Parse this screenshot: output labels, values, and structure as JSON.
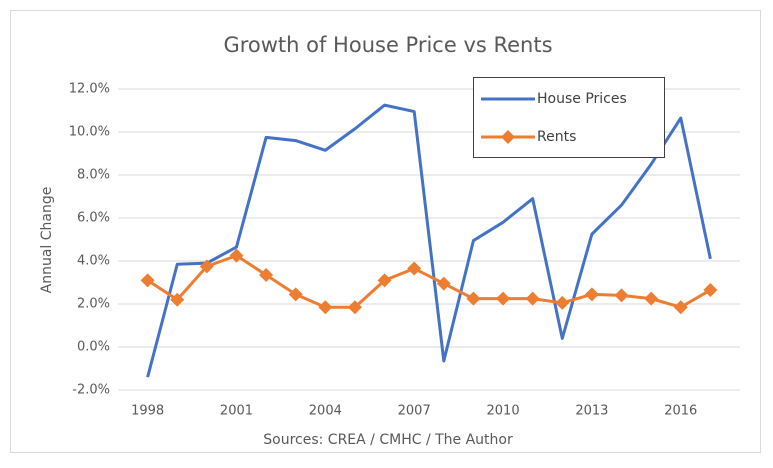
{
  "chart_data": {
    "type": "line",
    "title": "Growth of House Price vs Rents",
    "y_label": "Annual Change",
    "x_label": "Sources: CREA / CMHC / The Author",
    "x": [
      1998,
      1999,
      2000,
      2001,
      2002,
      2003,
      2004,
      2005,
      2006,
      2007,
      2008,
      2009,
      2010,
      2011,
      2012,
      2013,
      2014,
      2015,
      2016,
      2017
    ],
    "xlim": [
      1997,
      2018
    ],
    "xticks": [
      1998,
      2001,
      2004,
      2007,
      2010,
      2013,
      2016
    ],
    "ylim": [
      -2,
      12
    ],
    "yticks": [
      {
        "value": -2,
        "label": "-2.0%"
      },
      {
        "value": 0,
        "label": "0.0%"
      },
      {
        "value": 2,
        "label": "2.0%"
      },
      {
        "value": 4,
        "label": "4.0%"
      },
      {
        "value": 6,
        "label": "6.0%"
      },
      {
        "value": 8,
        "label": "8.0%"
      },
      {
        "value": 10,
        "label": "10.0%"
      },
      {
        "value": 12,
        "label": "12.0%"
      }
    ],
    "grid": true,
    "legend": "top-right",
    "series": [
      {
        "name": "House Prices",
        "color": "#4472c4",
        "marker": "none",
        "values": [
          -1.4,
          3.85,
          3.9,
          4.65,
          9.75,
          9.6,
          9.15,
          10.15,
          11.25,
          10.95,
          -0.65,
          4.95,
          5.8,
          6.9,
          0.4,
          5.25,
          6.6,
          8.5,
          10.65,
          4.1
        ]
      },
      {
        "name": "Rents",
        "color": "#ed7d31",
        "marker": "diamond",
        "values": [
          3.1,
          2.2,
          3.75,
          4.25,
          3.35,
          2.45,
          1.85,
          1.85,
          3.1,
          3.65,
          2.95,
          2.25,
          2.25,
          2.25,
          2.05,
          2.45,
          2.4,
          2.25,
          1.85,
          2.65
        ]
      }
    ]
  }
}
